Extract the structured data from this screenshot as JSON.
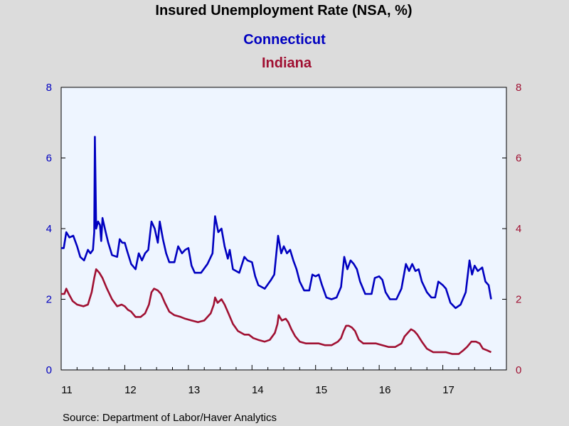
{
  "chart_data": {
    "type": "line",
    "title": "Insured Unemployment Rate (NSA, %)",
    "source": "Source:  Department of Labor/Haver Analytics",
    "x_ticks": [
      "11",
      "12",
      "13",
      "14",
      "15",
      "16",
      "17"
    ],
    "y_ticks_left": [
      "0",
      "2",
      "4",
      "6",
      "8"
    ],
    "y_ticks_right": [
      "0",
      "2",
      "4",
      "6",
      "8"
    ],
    "ylim": [
      0,
      8
    ],
    "xlim": [
      2011.0,
      2018.0
    ],
    "x_unit": "year (decimal)",
    "grid": false,
    "legend_placement": "top-center",
    "colors": {
      "Connecticut": "#0000c0",
      "Indiana": "#a01032",
      "plot_bg": "#eef5ff",
      "page_bg": "#dcdcdc"
    },
    "series": [
      {
        "name": "Connecticut",
        "axis": "left",
        "points": [
          [
            2011.0,
            3.45
          ],
          [
            2011.04,
            3.45
          ],
          [
            2011.08,
            3.9
          ],
          [
            2011.13,
            3.75
          ],
          [
            2011.19,
            3.8
          ],
          [
            2011.25,
            3.5
          ],
          [
            2011.3,
            3.2
          ],
          [
            2011.36,
            3.1
          ],
          [
            2011.42,
            3.4
          ],
          [
            2011.46,
            3.3
          ],
          [
            2011.5,
            3.4
          ],
          [
            2011.52,
            3.9
          ],
          [
            2011.53,
            6.6
          ],
          [
            2011.55,
            4.0
          ],
          [
            2011.58,
            4.2
          ],
          [
            2011.61,
            4.1
          ],
          [
            2011.63,
            3.65
          ],
          [
            2011.65,
            4.3
          ],
          [
            2011.7,
            3.9
          ],
          [
            2011.74,
            3.6
          ],
          [
            2011.8,
            3.25
          ],
          [
            2011.88,
            3.2
          ],
          [
            2011.92,
            3.7
          ],
          [
            2011.96,
            3.6
          ],
          [
            2012.0,
            3.6
          ],
          [
            2012.04,
            3.35
          ],
          [
            2012.1,
            3.0
          ],
          [
            2012.17,
            2.85
          ],
          [
            2012.22,
            3.3
          ],
          [
            2012.27,
            3.1
          ],
          [
            2012.32,
            3.3
          ],
          [
            2012.37,
            3.4
          ],
          [
            2012.42,
            4.2
          ],
          [
            2012.47,
            4.0
          ],
          [
            2012.52,
            3.6
          ],
          [
            2012.55,
            4.2
          ],
          [
            2012.6,
            3.7
          ],
          [
            2012.65,
            3.3
          ],
          [
            2012.7,
            3.05
          ],
          [
            2012.78,
            3.05
          ],
          [
            2012.84,
            3.5
          ],
          [
            2012.9,
            3.3
          ],
          [
            2012.95,
            3.4
          ],
          [
            2013.0,
            3.45
          ],
          [
            2013.05,
            2.95
          ],
          [
            2013.1,
            2.75
          ],
          [
            2013.2,
            2.75
          ],
          [
            2013.3,
            3.0
          ],
          [
            2013.38,
            3.3
          ],
          [
            2013.42,
            4.35
          ],
          [
            2013.47,
            3.9
          ],
          [
            2013.52,
            4.0
          ],
          [
            2013.57,
            3.5
          ],
          [
            2013.62,
            3.15
          ],
          [
            2013.65,
            3.4
          ],
          [
            2013.7,
            2.85
          ],
          [
            2013.8,
            2.75
          ],
          [
            2013.88,
            3.2
          ],
          [
            2013.93,
            3.1
          ],
          [
            2014.0,
            3.05
          ],
          [
            2014.05,
            2.65
          ],
          [
            2014.1,
            2.4
          ],
          [
            2014.2,
            2.3
          ],
          [
            2014.3,
            2.55
          ],
          [
            2014.35,
            2.7
          ],
          [
            2014.41,
            3.8
          ],
          [
            2014.46,
            3.3
          ],
          [
            2014.5,
            3.5
          ],
          [
            2014.55,
            3.3
          ],
          [
            2014.6,
            3.4
          ],
          [
            2014.65,
            3.1
          ],
          [
            2014.7,
            2.85
          ],
          [
            2014.75,
            2.5
          ],
          [
            2014.82,
            2.25
          ],
          [
            2014.9,
            2.25
          ],
          [
            2014.95,
            2.7
          ],
          [
            2015.0,
            2.65
          ],
          [
            2015.05,
            2.7
          ],
          [
            2015.1,
            2.4
          ],
          [
            2015.17,
            2.05
          ],
          [
            2015.25,
            2.0
          ],
          [
            2015.33,
            2.05
          ],
          [
            2015.4,
            2.35
          ],
          [
            2015.45,
            3.2
          ],
          [
            2015.5,
            2.85
          ],
          [
            2015.55,
            3.1
          ],
          [
            2015.6,
            3.0
          ],
          [
            2015.65,
            2.85
          ],
          [
            2015.7,
            2.5
          ],
          [
            2015.78,
            2.15
          ],
          [
            2015.88,
            2.15
          ],
          [
            2015.93,
            2.6
          ],
          [
            2016.0,
            2.65
          ],
          [
            2016.05,
            2.55
          ],
          [
            2016.1,
            2.2
          ],
          [
            2016.17,
            2.0
          ],
          [
            2016.27,
            2.0
          ],
          [
            2016.35,
            2.3
          ],
          [
            2016.42,
            3.0
          ],
          [
            2016.47,
            2.8
          ],
          [
            2016.52,
            3.0
          ],
          [
            2016.57,
            2.8
          ],
          [
            2016.62,
            2.85
          ],
          [
            2016.67,
            2.5
          ],
          [
            2016.75,
            2.2
          ],
          [
            2016.82,
            2.05
          ],
          [
            2016.88,
            2.05
          ],
          [
            2016.93,
            2.5
          ],
          [
            2017.0,
            2.4
          ],
          [
            2017.05,
            2.3
          ],
          [
            2017.12,
            1.9
          ],
          [
            2017.2,
            1.75
          ],
          [
            2017.28,
            1.85
          ],
          [
            2017.36,
            2.2
          ],
          [
            2017.42,
            3.1
          ],
          [
            2017.46,
            2.7
          ],
          [
            2017.5,
            2.95
          ],
          [
            2017.55,
            2.8
          ],
          [
            2017.62,
            2.9
          ],
          [
            2017.67,
            2.5
          ],
          [
            2017.72,
            2.4
          ],
          [
            2017.76,
            2.0
          ]
        ]
      },
      {
        "name": "Indiana",
        "axis": "right",
        "points": [
          [
            2011.0,
            2.15
          ],
          [
            2011.05,
            2.15
          ],
          [
            2011.08,
            2.3
          ],
          [
            2011.12,
            2.15
          ],
          [
            2011.18,
            1.95
          ],
          [
            2011.25,
            1.85
          ],
          [
            2011.35,
            1.8
          ],
          [
            2011.42,
            1.85
          ],
          [
            2011.48,
            2.2
          ],
          [
            2011.52,
            2.6
          ],
          [
            2011.55,
            2.85
          ],
          [
            2011.6,
            2.75
          ],
          [
            2011.65,
            2.6
          ],
          [
            2011.72,
            2.3
          ],
          [
            2011.8,
            2.0
          ],
          [
            2011.88,
            1.8
          ],
          [
            2011.95,
            1.85
          ],
          [
            2012.0,
            1.8
          ],
          [
            2012.05,
            1.7
          ],
          [
            2012.1,
            1.65
          ],
          [
            2012.17,
            1.5
          ],
          [
            2012.25,
            1.5
          ],
          [
            2012.32,
            1.6
          ],
          [
            2012.38,
            1.85
          ],
          [
            2012.42,
            2.2
          ],
          [
            2012.46,
            2.3
          ],
          [
            2012.52,
            2.25
          ],
          [
            2012.57,
            2.15
          ],
          [
            2012.63,
            1.9
          ],
          [
            2012.7,
            1.65
          ],
          [
            2012.78,
            1.55
          ],
          [
            2012.88,
            1.5
          ],
          [
            2012.95,
            1.45
          ],
          [
            2013.05,
            1.4
          ],
          [
            2013.15,
            1.35
          ],
          [
            2013.25,
            1.4
          ],
          [
            2013.35,
            1.6
          ],
          [
            2013.4,
            1.85
          ],
          [
            2013.42,
            2.05
          ],
          [
            2013.46,
            1.9
          ],
          [
            2013.52,
            2.0
          ],
          [
            2013.57,
            1.85
          ],
          [
            2013.63,
            1.6
          ],
          [
            2013.7,
            1.3
          ],
          [
            2013.78,
            1.1
          ],
          [
            2013.88,
            1.0
          ],
          [
            2013.95,
            1.0
          ],
          [
            2014.02,
            0.9
          ],
          [
            2014.1,
            0.85
          ],
          [
            2014.2,
            0.8
          ],
          [
            2014.28,
            0.85
          ],
          [
            2014.36,
            1.05
          ],
          [
            2014.4,
            1.3
          ],
          [
            2014.42,
            1.55
          ],
          [
            2014.47,
            1.4
          ],
          [
            2014.53,
            1.45
          ],
          [
            2014.57,
            1.35
          ],
          [
            2014.62,
            1.15
          ],
          [
            2014.68,
            0.95
          ],
          [
            2014.75,
            0.8
          ],
          [
            2014.85,
            0.75
          ],
          [
            2014.95,
            0.75
          ],
          [
            2015.05,
            0.75
          ],
          [
            2015.15,
            0.7
          ],
          [
            2015.25,
            0.7
          ],
          [
            2015.35,
            0.8
          ],
          [
            2015.4,
            0.9
          ],
          [
            2015.44,
            1.1
          ],
          [
            2015.48,
            1.25
          ],
          [
            2015.52,
            1.25
          ],
          [
            2015.57,
            1.2
          ],
          [
            2015.62,
            1.1
          ],
          [
            2015.68,
            0.85
          ],
          [
            2015.75,
            0.75
          ],
          [
            2015.85,
            0.75
          ],
          [
            2015.95,
            0.75
          ],
          [
            2016.05,
            0.7
          ],
          [
            2016.15,
            0.65
          ],
          [
            2016.25,
            0.65
          ],
          [
            2016.35,
            0.75
          ],
          [
            2016.4,
            0.95
          ],
          [
            2016.45,
            1.05
          ],
          [
            2016.5,
            1.15
          ],
          [
            2016.55,
            1.1
          ],
          [
            2016.6,
            1.0
          ],
          [
            2016.67,
            0.8
          ],
          [
            2016.75,
            0.6
          ],
          [
            2016.85,
            0.5
          ],
          [
            2016.95,
            0.5
          ],
          [
            2017.05,
            0.5
          ],
          [
            2017.15,
            0.45
          ],
          [
            2017.25,
            0.45
          ],
          [
            2017.32,
            0.55
          ],
          [
            2017.38,
            0.65
          ],
          [
            2017.45,
            0.8
          ],
          [
            2017.52,
            0.8
          ],
          [
            2017.58,
            0.75
          ],
          [
            2017.63,
            0.6
          ],
          [
            2017.7,
            0.55
          ],
          [
            2017.76,
            0.5
          ]
        ]
      }
    ]
  }
}
